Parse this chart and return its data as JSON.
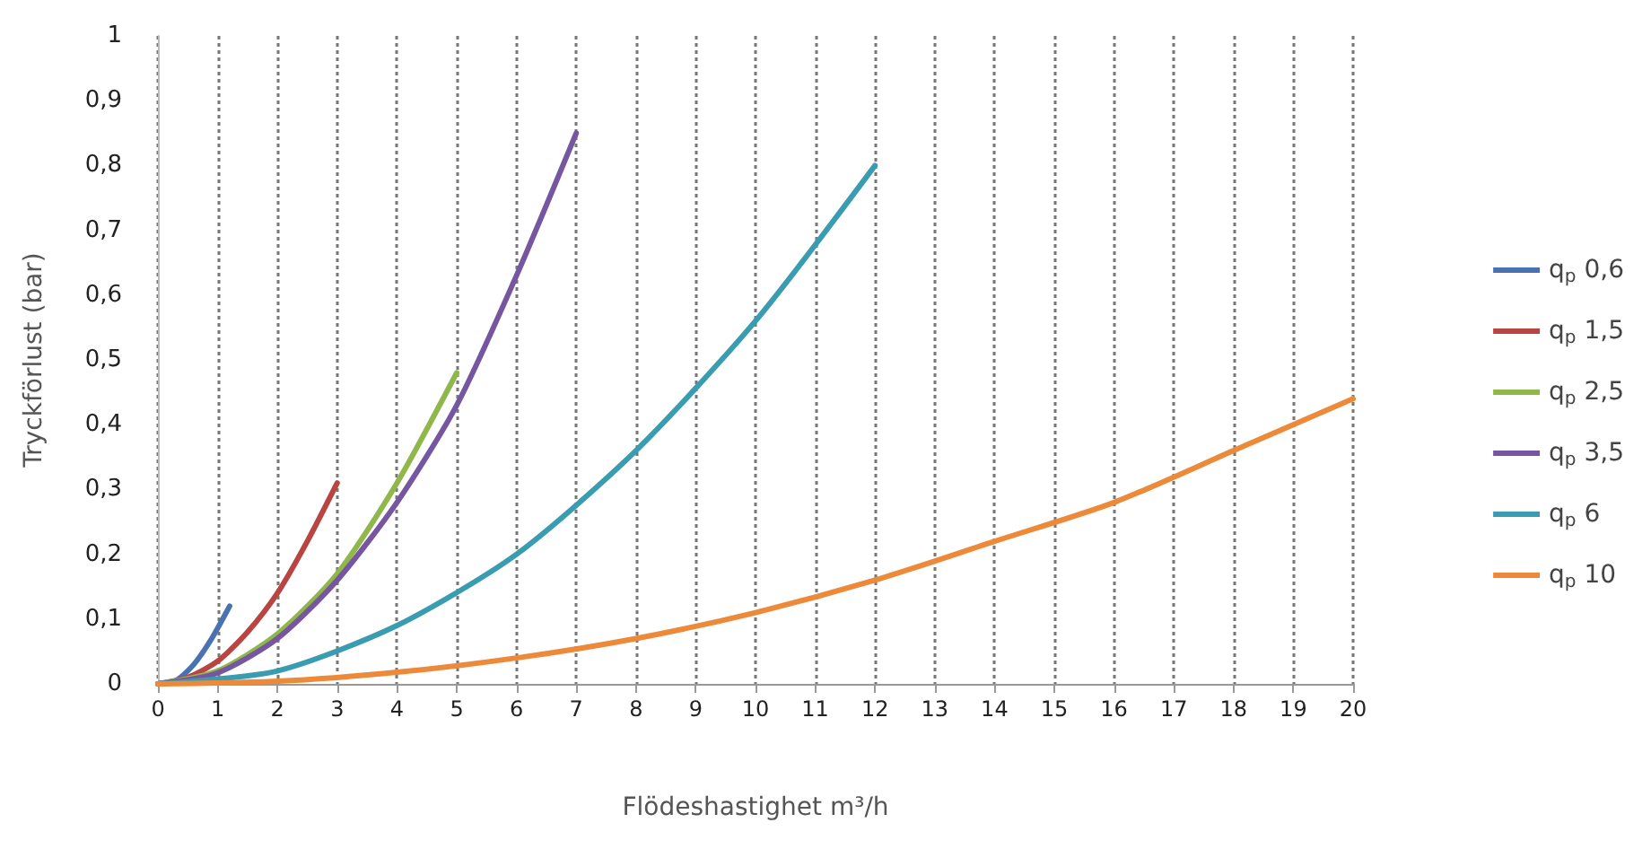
{
  "chart_data": {
    "type": "line",
    "xlabel": "Flödeshastighet m³/h",
    "ylabel": "Tryckförlust (bar)",
    "xlim": [
      0,
      20
    ],
    "xticks": [
      0,
      1,
      2,
      3,
      4,
      5,
      6,
      7,
      8,
      9,
      10,
      11,
      12,
      13,
      14,
      15,
      16,
      17,
      18,
      19,
      20
    ],
    "ylim": [
      0,
      1
    ],
    "yticks": [
      0,
      {
        "value": 0.1,
        "label": "0,1"
      },
      {
        "value": 0.2,
        "label": "0,2"
      },
      {
        "value": 0.3,
        "label": "0,3"
      },
      {
        "value": 0.4,
        "label": "0,4"
      },
      {
        "value": 0.5,
        "label": "0,5"
      },
      {
        "value": 0.6,
        "label": "0,6"
      },
      {
        "value": 0.7,
        "label": "0,7"
      },
      {
        "value": 0.8,
        "label": "0,8"
      },
      {
        "value": 0.9,
        "label": "0,9"
      },
      1
    ],
    "grid": "x",
    "legend": "right",
    "marker": "none",
    "line_style": "solid",
    "series": [
      {
        "name": "q$_{p}$ 0,6",
        "color": "#4a72b0",
        "x": [
          0,
          0.3,
          0.6,
          0.9,
          1.2
        ],
        "values": [
          0,
          0.005,
          0.03,
          0.07,
          0.12
        ]
      },
      {
        "name": "q$_{p}$ 1,5",
        "color": "#b84542",
        "x": [
          0,
          0.5,
          1,
          1.5,
          2,
          2.5,
          3
        ],
        "values": [
          0,
          0.01,
          0.035,
          0.08,
          0.14,
          0.22,
          0.31
        ]
      },
      {
        "name": "q$_{p}$ 2,5",
        "color": "#8fb74a",
        "x": [
          0,
          1,
          2,
          3,
          4,
          5
        ],
        "values": [
          0,
          0.02,
          0.077,
          0.17,
          0.31,
          0.48
        ]
      },
      {
        "name": "q$_{p}$ 3,5",
        "color": "#7656a0",
        "x": [
          0,
          1,
          2,
          3,
          4,
          5,
          6,
          7
        ],
        "values": [
          0,
          0.017,
          0.07,
          0.16,
          0.28,
          0.43,
          0.63,
          0.85
        ]
      },
      {
        "name": "q$_{p}$ 6",
        "color": "#3a9cb0",
        "x": [
          0,
          2,
          4,
          6,
          8,
          10,
          12
        ],
        "values": [
          0,
          0.02,
          0.09,
          0.2,
          0.36,
          0.56,
          0.8
        ]
      },
      {
        "name": "q$_{p}$ 10",
        "color": "#ec8a3a",
        "x": [
          0,
          2,
          4,
          6,
          8,
          10,
          12,
          14,
          16,
          18,
          20
        ],
        "values": [
          0,
          0.004,
          0.018,
          0.04,
          0.07,
          0.11,
          0.16,
          0.22,
          0.28,
          0.36,
          0.44
        ]
      }
    ]
  }
}
